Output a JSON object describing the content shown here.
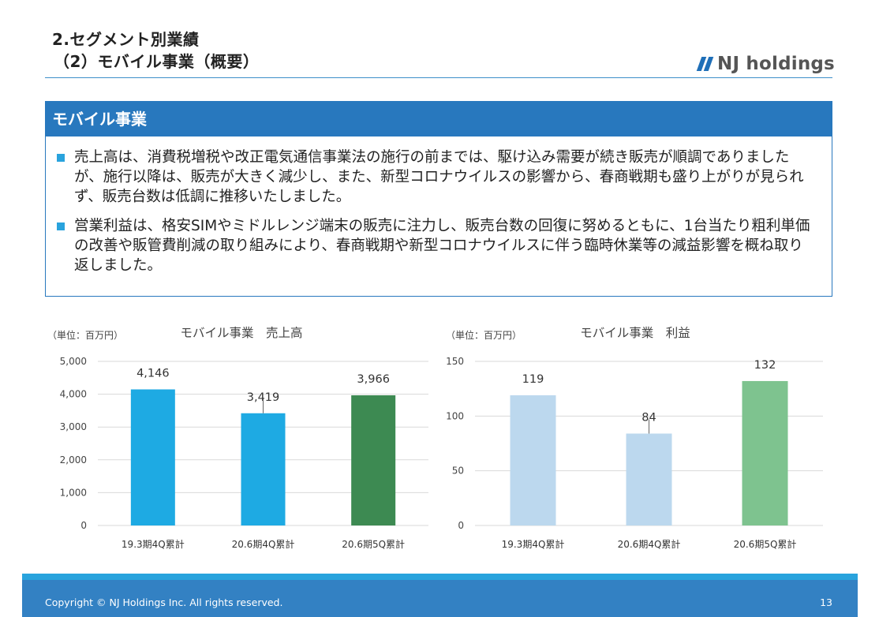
{
  "header": {
    "title_line1": "2.セグメント別業績",
    "title_line2": "（2）モバイル事業（概要）"
  },
  "logo": {
    "text": "NJ holdings",
    "color": "#1f6fb8"
  },
  "summary": {
    "heading": "モバイル事業",
    "bullets": [
      "売上高は、消費税増税や改正電気通信事業法の施行の前までは、駆け込み需要が続き販売が順調でありましたが、施行以降は、販売が大きく減少し、また、新型コロナウイルスの影響から、春商戦期も盛り上がりが見られず、販売台数は低調に推移いたしました。",
      "営業利益は、格安SIMやミドルレンジ端末の販売に注力し、販売台数の回復に努めるともに、1台当たり粗利単価の改善や販管費削減の取り組みにより、春商戦期や新型コロナウイルスに伴う臨時休業等の減益影響を概ね取り返しました。"
    ]
  },
  "chart_data": [
    {
      "type": "bar",
      "title": "モバイル事業　売上高",
      "unit_label": "（単位：百万円）",
      "categories": [
        "19.3期4Q累計",
        "20.6期4Q累計",
        "20.6期5Q累計"
      ],
      "values": [
        4146,
        3419,
        3966
      ],
      "value_labels": [
        "4,146",
        "3,419",
        "3,966"
      ],
      "ylim": [
        0,
        5000
      ],
      "yticks": [
        0,
        1000,
        2000,
        3000,
        4000,
        5000
      ],
      "ytick_labels": [
        "0",
        "1,000",
        "2,000",
        "3,000",
        "4,000",
        "5,000"
      ],
      "colors": [
        "#1eaae3",
        "#1eaae3",
        "#3d8a52"
      ],
      "grid": true
    },
    {
      "type": "bar",
      "title": "モバイル事業　利益",
      "unit_label": "（単位：百万円）",
      "categories": [
        "19.3期4Q累計",
        "20.6期4Q累計",
        "20.6期5Q累計"
      ],
      "values": [
        119,
        84,
        132
      ],
      "value_labels": [
        "119",
        "84",
        "132"
      ],
      "ylim": [
        0,
        150
      ],
      "yticks": [
        0,
        50,
        100,
        150
      ],
      "ytick_labels": [
        "0",
        "50",
        "100",
        "150"
      ],
      "colors": [
        "#bcd8ee",
        "#bcd8ee",
        "#7ec38f"
      ],
      "grid": true
    }
  ],
  "footer": {
    "copyright": "Copyright © NJ Holdings Inc. All rights reserved.",
    "page_number": "13"
  }
}
